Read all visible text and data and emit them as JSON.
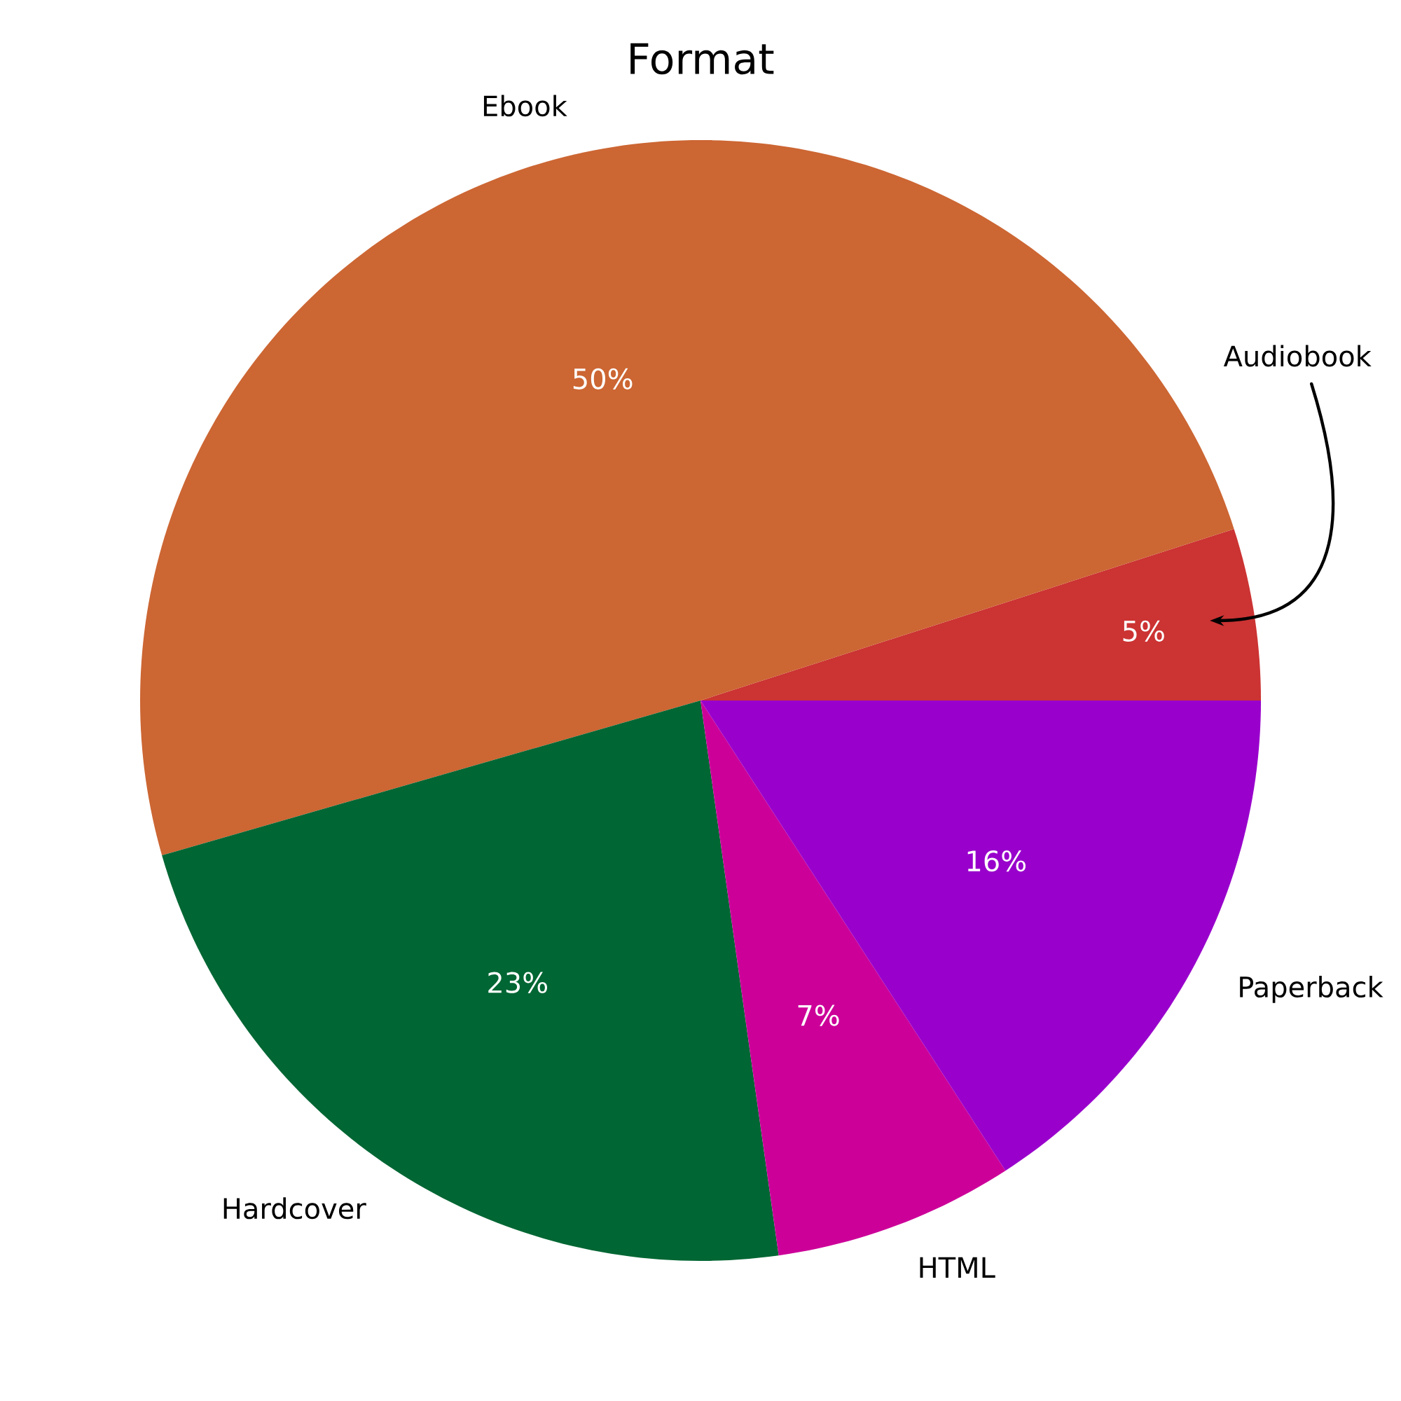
{
  "chart_data": {
    "type": "pie",
    "title": "Format",
    "categories": [
      "Audiobook",
      "Ebook",
      "Hardcover",
      "HTML",
      "Paperback"
    ],
    "values": [
      5,
      50,
      23,
      7,
      16
    ],
    "colors": [
      "#cc3333",
      "#cc6633",
      "#006633",
      "#cc0099",
      "#9900cc"
    ],
    "value_labels": [
      "5%",
      "50%",
      "23%",
      "7%",
      "16%"
    ]
  }
}
